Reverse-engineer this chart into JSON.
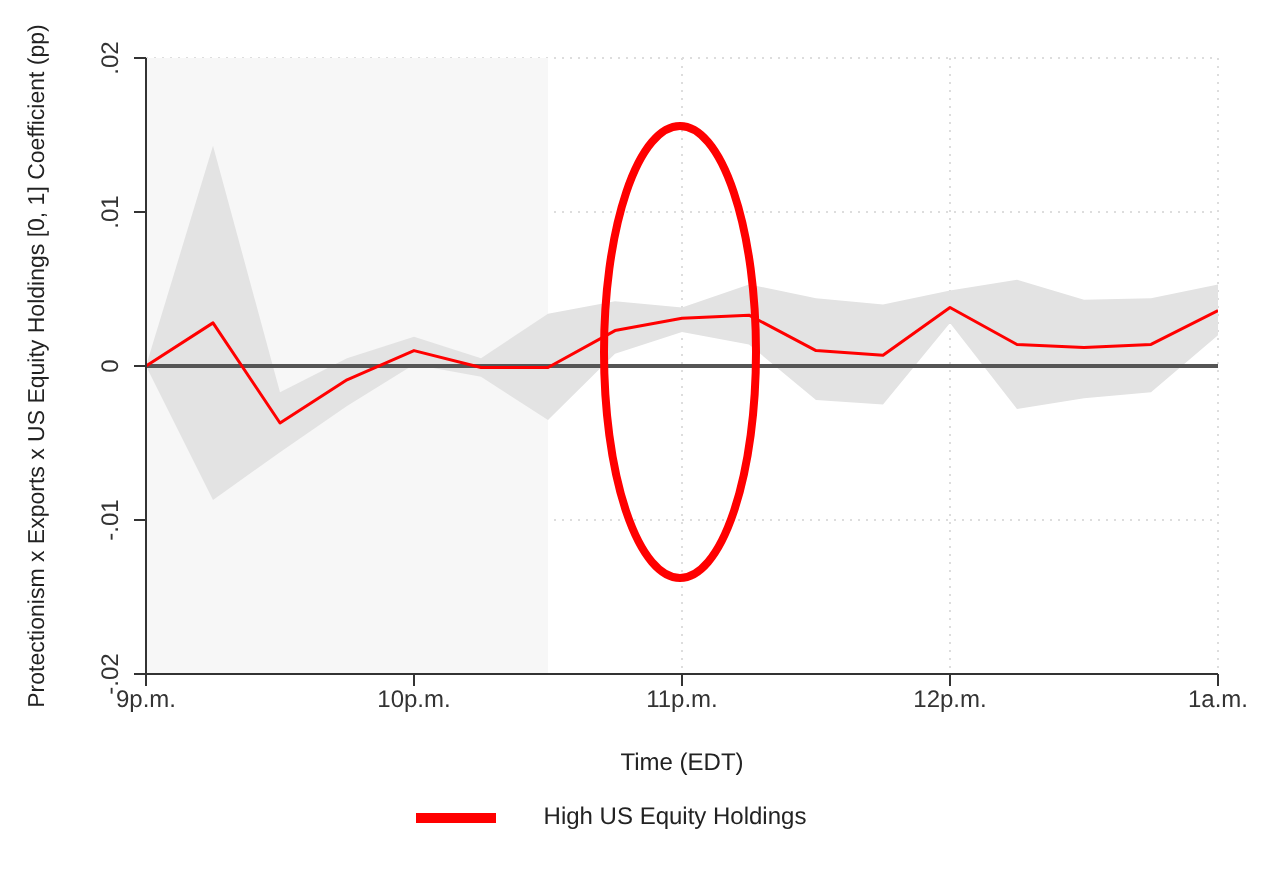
{
  "chart_data": {
    "type": "line",
    "xlabel": "Time (EDT)",
    "ylabel": "Protectionism x Exports x US Equity Holdings [0, 1] Coefficient (pp)",
    "categories": [
      "9p.m.",
      null,
      null,
      null,
      "10p.m.",
      null,
      null,
      null,
      "11p.m.",
      null,
      null,
      null,
      "12p.m.",
      null,
      null,
      null,
      "1a.m."
    ],
    "series": [
      {
        "name": "High US Equity Holdings",
        "color": "#ff0000",
        "values": [
          0,
          0.0028,
          -0.0037,
          -0.0009,
          0.001,
          -0.0001,
          -0.0001,
          0.0023,
          0.0031,
          0.0033,
          0.001,
          0.0007,
          0.0038,
          0.0014,
          0.0012,
          0.0014,
          0.0036
        ],
        "lower": [
          0,
          -0.0087,
          -0.0056,
          -0.0026,
          0.0001,
          -0.0007,
          -0.0035,
          0.0008,
          0.0022,
          0.0014,
          -0.0022,
          -0.0025,
          0.0028,
          -0.0028,
          -0.0021,
          -0.0017,
          0.002
        ],
        "upper": [
          0,
          0.0143,
          -0.0017,
          0.0005,
          0.0019,
          0.0005,
          0.0034,
          0.0042,
          0.0038,
          0.0053,
          0.0044,
          0.004,
          0.0049,
          0.0056,
          0.0043,
          0.0044,
          0.0053
        ]
      }
    ],
    "ylim": [
      -0.02,
      0.02
    ],
    "yticks": [
      {
        "value": -0.02,
        "label": "-.02"
      },
      {
        "value": -0.01,
        "label": "-.01"
      },
      {
        "value": 0,
        "label": "0"
      },
      {
        "value": 0.01,
        "label": ".01"
      },
      {
        "value": 0.02,
        "label": ".02"
      }
    ],
    "ref_lines": [
      {
        "axis": "y",
        "value": 0,
        "color": "#555555"
      }
    ],
    "grid": true,
    "legend": "bottom",
    "marker": "none",
    "line_style": "solid"
  }
}
